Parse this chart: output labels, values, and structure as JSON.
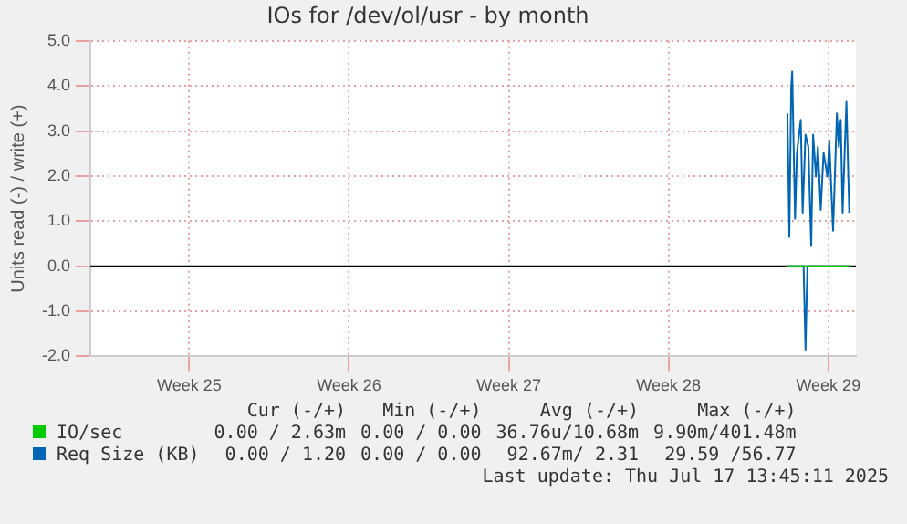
{
  "chart_data": {
    "type": "line",
    "title": "IOs for /dev/ol/usr - by month",
    "ylabel": "Units read (-) / write (+)",
    "xlim": [
      "2025-06-11T16:00",
      "2025-07-15T05:00"
    ],
    "xticks": [
      {
        "value": "2025-06-16",
        "label": "Week 25"
      },
      {
        "value": "2025-06-23",
        "label": "Week 26"
      },
      {
        "value": "2025-06-30",
        "label": "Week 27"
      },
      {
        "value": "2025-07-07",
        "label": "Week 28"
      },
      {
        "value": "2025-07-14",
        "label": "Week 29"
      }
    ],
    "ylim": [
      -2,
      5
    ],
    "yticks": [
      {
        "value": -2,
        "label": "-2.0"
      },
      {
        "value": -1,
        "label": "-1.0"
      },
      {
        "value": 0,
        "label": "0.0"
      },
      {
        "value": 1,
        "label": "1.0"
      },
      {
        "value": 2,
        "label": "2.0"
      },
      {
        "value": 3,
        "label": "3.0"
      },
      {
        "value": 4,
        "label": "4.0"
      },
      {
        "value": 5,
        "label": "5.0"
      }
    ],
    "grid": true,
    "legend": "bottom left",
    "marker": "none",
    "line_style": "solid",
    "series": [
      {
        "name": "IO/sec",
        "color": "#00cc00",
        "x": [
          "2025-07-12T05:00",
          "2025-07-13T07:00",
          "2025-07-14T22:00"
        ],
        "values": [
          0,
          0,
          0
        ]
      },
      {
        "name": "Req Size (KB)",
        "color": "#0066b3",
        "x": [
          "2025-07-12T05:00",
          "2025-07-12T07:00",
          "2025-07-12T09:00",
          "2025-07-12T10:00",
          "2025-07-12T13:00",
          "2025-07-12T15:00",
          "2025-07-12T19:00",
          "2025-07-12T21:00",
          "2025-07-13T00:00",
          "2025-07-13T03:00",
          "2025-07-13T06:00",
          "2025-07-13T08:00",
          "2025-07-13T11:00",
          "2025-07-13T13:00",
          "2025-07-13T16:00",
          "2025-07-13T19:00",
          "2025-07-13T23:00",
          "2025-07-14T01:00",
          "2025-07-14T05:00",
          "2025-07-14T09:00",
          "2025-07-14T11:00",
          "2025-07-14T13:00",
          "2025-07-14T15:00",
          "2025-07-14T19:00",
          "2025-07-14T22:00"
        ],
        "values": [
          3.39,
          0.65,
          3.99,
          4.32,
          1.05,
          2.52,
          3.25,
          1.19,
          2.92,
          2.65,
          0.45,
          2.92,
          1.99,
          2.65,
          1.25,
          2.52,
          1.99,
          2.79,
          0.79,
          3.39,
          2.65,
          3.25,
          1.19,
          3.65,
          1.19
        ]
      },
      {
        "color": "#0066b3",
        "x": [
          "2025-07-12T05:00",
          "2025-07-12T22:00",
          "2025-07-13T00:00",
          "2025-07-13T02:00",
          "2025-07-14T22:00"
        ],
        "values": [
          0,
          0,
          -1.85,
          0,
          0
        ]
      }
    ],
    "ref_lines": [
      {
        "axis": "y",
        "value": 0,
        "color": "#000000"
      }
    ],
    "annotations": [
      "Cur (-/+)",
      "Min (-/+)",
      "Avg (-/+)",
      "Max (-/+)",
      "0.00 / 2.63m",
      "0.00 / 0.00",
      "36.76u/10.68m",
      "9.90m/401.48m",
      "0.00 / 1.20",
      "0.00 / 0.00",
      "92.67m/ 2.31",
      "29.59 /56.77",
      "Last update: Thu Jul 17 13:45:11 2025"
    ]
  }
}
